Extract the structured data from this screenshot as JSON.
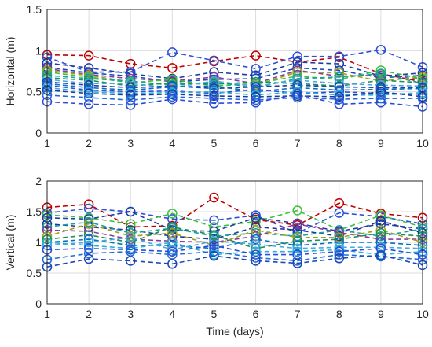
{
  "chart_data": [
    {
      "type": "line",
      "ylabel": "Horizontal (m)",
      "xlabel": "",
      "xlim": [
        1,
        10
      ],
      "ylim": [
        0,
        1.5
      ],
      "x": [
        1,
        2,
        3,
        4,
        5,
        6,
        7,
        8,
        9,
        10
      ],
      "xticks": [
        "1",
        "2",
        "3",
        "4",
        "5",
        "6",
        "7",
        "8",
        "9",
        "10"
      ],
      "yticks": [
        "0",
        "0.5",
        "1",
        "1.5"
      ],
      "yticks_values": [
        0,
        0.5,
        1,
        1.5
      ],
      "grid": true,
      "marker": "circle",
      "series": [
        {
          "color": "#c00000",
          "values": [
            0.95,
            0.94,
            0.84,
            0.79,
            0.87,
            0.94,
            0.86,
            0.92,
            0.72,
            0.62
          ]
        },
        {
          "color": "#2a50d8",
          "values": [
            0.92,
            0.74,
            0.74,
            0.98,
            0.88,
            0.78,
            0.93,
            0.93,
            1.01,
            0.8
          ]
        },
        {
          "color": "#1f3da8",
          "values": [
            0.85,
            0.79,
            0.72,
            0.66,
            0.74,
            0.7,
            0.86,
            0.84,
            0.69,
            0.73
          ]
        },
        {
          "color": "#1a48b8",
          "values": [
            0.8,
            0.73,
            0.69,
            0.62,
            0.65,
            0.66,
            0.79,
            0.76,
            0.67,
            0.7
          ]
        },
        {
          "color": "#8a3a9a",
          "values": [
            0.78,
            0.71,
            0.66,
            0.63,
            0.68,
            0.6,
            0.76,
            0.69,
            0.7,
            0.65
          ]
        },
        {
          "color": "#a0a020",
          "values": [
            0.76,
            0.7,
            0.62,
            0.59,
            0.61,
            0.58,
            0.74,
            0.73,
            0.63,
            0.68
          ]
        },
        {
          "color": "#3dbf3d",
          "values": [
            0.74,
            0.68,
            0.61,
            0.65,
            0.57,
            0.6,
            0.69,
            0.65,
            0.76,
            0.66
          ]
        },
        {
          "color": "#17a0a0",
          "values": [
            0.7,
            0.66,
            0.63,
            0.58,
            0.62,
            0.55,
            0.66,
            0.68,
            0.72,
            0.6
          ]
        },
        {
          "color": "#1d8f5a",
          "values": [
            0.67,
            0.64,
            0.57,
            0.61,
            0.59,
            0.62,
            0.6,
            0.57,
            0.64,
            0.61
          ]
        },
        {
          "color": "#4aa8e0",
          "values": [
            0.65,
            0.6,
            0.6,
            0.55,
            0.63,
            0.57,
            0.64,
            0.6,
            0.58,
            0.57
          ]
        },
        {
          "color": "#1f3da8",
          "values": [
            0.62,
            0.58,
            0.55,
            0.57,
            0.54,
            0.56,
            0.58,
            0.56,
            0.55,
            0.55
          ]
        },
        {
          "color": "#0a6ec0",
          "values": [
            0.6,
            0.55,
            0.52,
            0.56,
            0.57,
            0.5,
            0.55,
            0.52,
            0.53,
            0.54
          ]
        },
        {
          "color": "#2a50d8",
          "values": [
            0.58,
            0.52,
            0.5,
            0.51,
            0.48,
            0.53,
            0.48,
            0.5,
            0.48,
            0.47
          ]
        },
        {
          "color": "#2ab0d8",
          "values": [
            0.55,
            0.5,
            0.48,
            0.49,
            0.5,
            0.46,
            0.5,
            0.46,
            0.46,
            0.49
          ]
        },
        {
          "color": "#1a3a9a",
          "values": [
            0.52,
            0.48,
            0.46,
            0.47,
            0.45,
            0.44,
            0.45,
            0.44,
            0.5,
            0.44
          ]
        },
        {
          "color": "#1f6ad8",
          "values": [
            0.46,
            0.43,
            0.4,
            0.44,
            0.42,
            0.4,
            0.43,
            0.41,
            0.42,
            0.42
          ]
        },
        {
          "color": "#2a4ad8",
          "values": [
            0.38,
            0.35,
            0.34,
            0.41,
            0.36,
            0.37,
            0.47,
            0.35,
            0.37,
            0.32
          ]
        }
      ]
    },
    {
      "type": "line",
      "ylabel": "Vertical (m)",
      "xlabel": "Time (days)",
      "xlim": [
        1,
        10
      ],
      "ylim": [
        0,
        2
      ],
      "x": [
        1,
        2,
        3,
        4,
        5,
        6,
        7,
        8,
        9,
        10
      ],
      "xticks": [
        "1",
        "2",
        "3",
        "4",
        "5",
        "6",
        "7",
        "8",
        "9",
        "10"
      ],
      "yticks": [
        "0",
        "0.5",
        "1",
        "1.5",
        "2"
      ],
      "yticks_values": [
        0,
        0.5,
        1,
        1.5,
        2
      ],
      "grid": true,
      "marker": "circle",
      "series": [
        {
          "color": "#c00000",
          "values": [
            1.57,
            1.62,
            1.25,
            1.27,
            1.73,
            1.37,
            1.28,
            1.64,
            1.47,
            1.4
          ]
        },
        {
          "color": "#2a50d8",
          "values": [
            1.48,
            1.55,
            1.5,
            1.38,
            1.36,
            1.44,
            1.15,
            1.48,
            1.42,
            1.3
          ]
        },
        {
          "color": "#3dbf3d",
          "values": [
            1.45,
            1.4,
            1.3,
            1.47,
            1.25,
            1.34,
            1.52,
            1.2,
            1.44,
            1.25
          ]
        },
        {
          "color": "#1f3da8",
          "values": [
            1.4,
            1.38,
            1.5,
            1.2,
            1.18,
            1.4,
            1.31,
            1.18,
            1.3,
            1.22
          ]
        },
        {
          "color": "#1a3a9a",
          "values": [
            1.3,
            1.25,
            1.2,
            1.1,
            1.05,
            1.25,
            1.2,
            1.1,
            1.35,
            1.15
          ]
        },
        {
          "color": "#17a0a0",
          "values": [
            1.25,
            1.33,
            1.15,
            1.23,
            1.1,
            1.15,
            1.1,
            1.2,
            1.1,
            1.22
          ]
        },
        {
          "color": "#8a3a9a",
          "values": [
            1.2,
            1.18,
            1.05,
            1.02,
            1.0,
            1.1,
            1.3,
            1.16,
            1.05,
            1.05
          ]
        },
        {
          "color": "#a0a020",
          "values": [
            1.1,
            1.3,
            1.1,
            1.15,
            0.95,
            1.2,
            1.08,
            1.08,
            1.2,
            1.0
          ]
        },
        {
          "color": "#1d8f5a",
          "values": [
            1.05,
            1.12,
            1.0,
            1.25,
            1.12,
            0.9,
            1.02,
            1.05,
            1.15,
            1.1
          ]
        },
        {
          "color": "#0a6ec0",
          "values": [
            1.0,
            1.05,
            0.95,
            0.95,
            0.9,
            1.05,
            0.95,
            1.0,
            1.0,
            0.95
          ]
        },
        {
          "color": "#4aa8e0",
          "values": [
            0.95,
            1.0,
            1.08,
            0.88,
            1.02,
            0.97,
            0.9,
            0.92,
            0.92,
            0.9
          ]
        },
        {
          "color": "#2ab0d8",
          "values": [
            1.0,
            0.95,
            0.9,
            1.0,
            0.8,
            0.85,
            0.85,
            0.88,
            0.8,
            0.85
          ]
        },
        {
          "color": "#2a4ad8",
          "values": [
            0.88,
            0.9,
            0.88,
            0.85,
            0.95,
            0.8,
            0.8,
            0.85,
            0.9,
            0.8
          ]
        },
        {
          "color": "#1f6ad8",
          "values": [
            0.72,
            0.82,
            0.85,
            0.8,
            0.85,
            0.75,
            0.7,
            0.8,
            0.77,
            0.72
          ]
        },
        {
          "color": "#1a48b8",
          "values": [
            0.6,
            0.73,
            0.7,
            0.65,
            0.78,
            0.7,
            0.66,
            0.74,
            0.79,
            0.63
          ]
        }
      ]
    }
  ]
}
